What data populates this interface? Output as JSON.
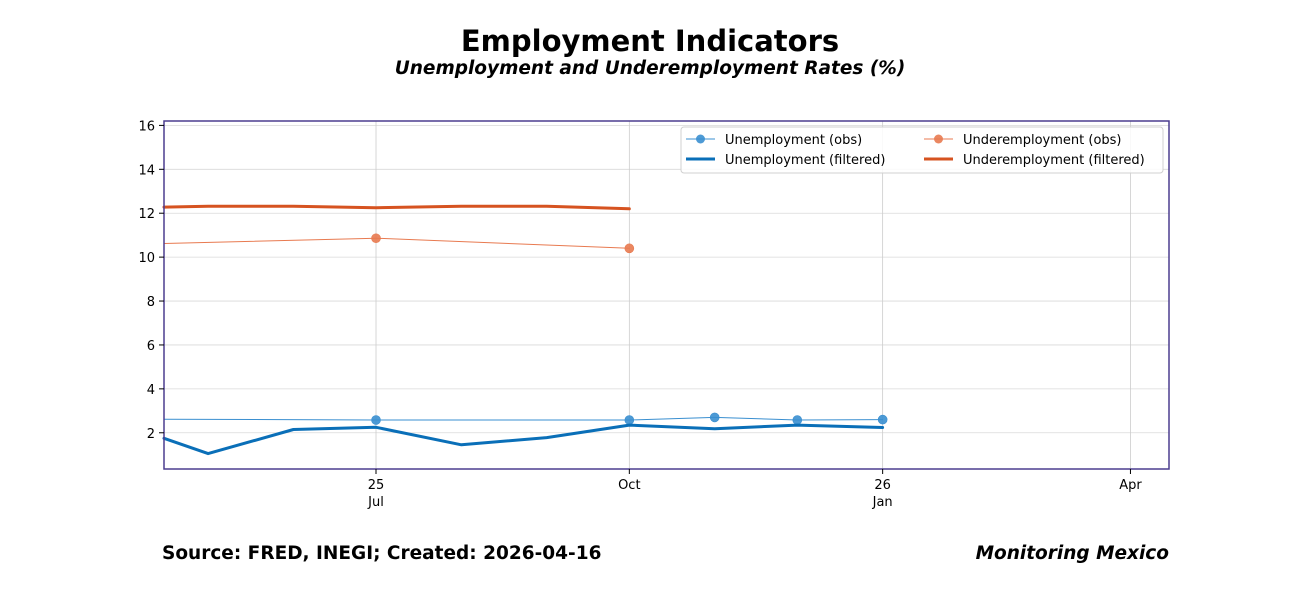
{
  "title": "Employment Indicators",
  "subtitle": "Unemployment and Underemployment Rates (%)",
  "footer": {
    "source": "Source: FRED, INEGI; Created: 2026-04-16",
    "brand": "Monitoring Mexico"
  },
  "colors": {
    "unemployment_obs": "#3a8fd0",
    "unemployment_filtered": "#0a6fb8",
    "underemployment_obs": "#e87a50",
    "underemployment_filtered": "#d65320",
    "frame": "#4b3d8f",
    "grid": "#d9d9d9"
  },
  "chart_data": {
    "type": "line",
    "title": "",
    "xlabel": "",
    "ylabel": "",
    "x_range": [
      "2025-04-15",
      "2026-04-15"
    ],
    "ylim": [
      0.35,
      16.2
    ],
    "y_ticks": [
      2,
      4,
      6,
      8,
      10,
      12,
      14,
      16
    ],
    "x_ticks": [
      {
        "date": "2025-07-01",
        "label": "25\nJul"
      },
      {
        "date": "2025-10-01",
        "label": "Oct"
      },
      {
        "date": "2026-01-01",
        "label": "26\nJan"
      },
      {
        "date": "2026-04-01",
        "label": "Apr"
      }
    ],
    "grid": true,
    "legend": "top-right",
    "series": [
      {
        "name": "Unemployment (obs)",
        "style": "thin-line-markers",
        "markers": true,
        "points": [
          {
            "x": "2025-04-15",
            "y": 2.62
          },
          {
            "x": "2025-07-01",
            "y": 2.58
          },
          {
            "x": "2025-10-01",
            "y": 2.58
          },
          {
            "x": "2025-11-01",
            "y": 2.7
          },
          {
            "x": "2025-12-01",
            "y": 2.58
          },
          {
            "x": "2026-01-01",
            "y": 2.6
          }
        ],
        "marker_points": [
          {
            "x": "2025-07-01",
            "y": 2.58
          },
          {
            "x": "2025-10-01",
            "y": 2.58
          },
          {
            "x": "2025-11-01",
            "y": 2.7
          },
          {
            "x": "2025-12-01",
            "y": 2.58
          },
          {
            "x": "2026-01-01",
            "y": 2.6
          }
        ]
      },
      {
        "name": "Unemployment (filtered)",
        "style": "thick-line",
        "markers": false,
        "points": [
          {
            "x": "2025-04-15",
            "y": 1.75
          },
          {
            "x": "2025-05-01",
            "y": 1.05
          },
          {
            "x": "2025-06-01",
            "y": 2.15
          },
          {
            "x": "2025-07-01",
            "y": 2.25
          },
          {
            "x": "2025-08-01",
            "y": 1.45
          },
          {
            "x": "2025-09-01",
            "y": 1.78
          },
          {
            "x": "2025-10-01",
            "y": 2.35
          },
          {
            "x": "2025-11-01",
            "y": 2.18
          },
          {
            "x": "2025-12-01",
            "y": 2.35
          },
          {
            "x": "2026-01-01",
            "y": 2.24
          }
        ]
      },
      {
        "name": "Underemployment (obs)",
        "style": "thin-line-markers",
        "markers": true,
        "points": [
          {
            "x": "2025-04-15",
            "y": 10.62
          },
          {
            "x": "2025-07-01",
            "y": 10.86
          },
          {
            "x": "2025-10-01",
            "y": 10.4
          }
        ],
        "marker_points": [
          {
            "x": "2025-07-01",
            "y": 10.86
          },
          {
            "x": "2025-10-01",
            "y": 10.4
          }
        ]
      },
      {
        "name": "Underemployment (filtered)",
        "style": "thick-line",
        "markers": false,
        "points": [
          {
            "x": "2025-04-15",
            "y": 12.28
          },
          {
            "x": "2025-05-01",
            "y": 12.32
          },
          {
            "x": "2025-06-01",
            "y": 12.32
          },
          {
            "x": "2025-07-01",
            "y": 12.25
          },
          {
            "x": "2025-08-01",
            "y": 12.32
          },
          {
            "x": "2025-09-01",
            "y": 12.32
          },
          {
            "x": "2025-10-01",
            "y": 12.2
          }
        ]
      }
    ]
  }
}
